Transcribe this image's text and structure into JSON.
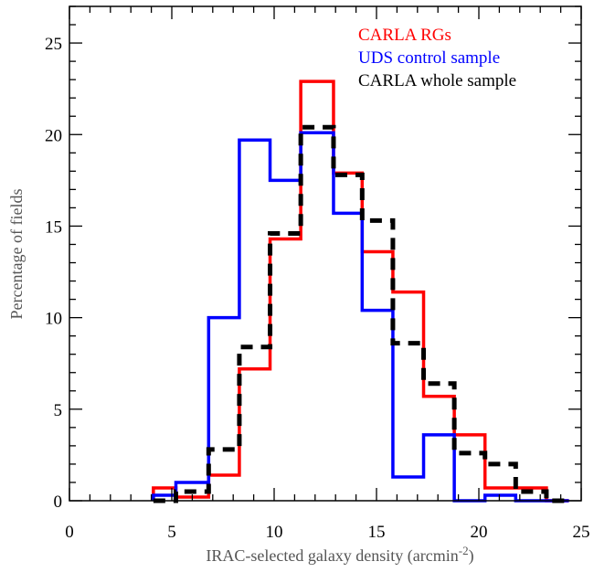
{
  "chart_data": {
    "type": "histogram-step",
    "xlabel": "IRAC-selected galaxy density (arcmin",
    "xlabel_sup": "-2",
    "xlabel_close": ")",
    "ylabel": "Percentage of fields",
    "xlim": [
      0,
      25
    ],
    "ylim": [
      0,
      27
    ],
    "xticks": [
      0,
      5,
      10,
      15,
      20,
      25
    ],
    "yticks": [
      0,
      5,
      10,
      15,
      20,
      25
    ],
    "xtick_labels": [
      "0",
      "5",
      "10",
      "15",
      "20",
      "25"
    ],
    "ytick_labels": [
      "0",
      "5",
      "10",
      "15",
      "20",
      "25"
    ],
    "x_minor_step": 1,
    "y_minor_step": 1,
    "grid": false,
    "legend_position": "top-right",
    "series": [
      {
        "name": "CARLA RGs",
        "color": "#ff0000",
        "style": "solid",
        "edges": [
          4.1,
          5.2,
          6.8,
          8.3,
          9.8,
          11.3,
          12.9,
          14.3,
          15.8,
          17.3,
          18.8,
          20.3,
          21.8,
          23.3,
          24.4
        ],
        "values": [
          0.7,
          0.2,
          1.4,
          7.2,
          14.3,
          22.9,
          17.9,
          13.6,
          11.4,
          5.7,
          3.6,
          0.7,
          0.7,
          0.0
        ]
      },
      {
        "name": "UDS control sample",
        "color": "#0000ff",
        "style": "solid",
        "edges": [
          4.1,
          5.2,
          6.8,
          8.3,
          9.8,
          11.3,
          12.9,
          14.3,
          15.8,
          17.3,
          18.8,
          20.3,
          21.8,
          23.3,
          24.4
        ],
        "values": [
          0.3,
          1.0,
          10.0,
          19.7,
          17.5,
          20.1,
          15.7,
          10.4,
          1.3,
          3.6,
          0.0,
          0.3,
          0.0,
          0.0
        ]
      },
      {
        "name": "CARLA whole sample",
        "color": "#000000",
        "style": "dashed",
        "edges": [
          4.1,
          5.2,
          6.8,
          8.3,
          9.8,
          11.3,
          12.9,
          14.3,
          15.8,
          17.3,
          18.8,
          20.3,
          21.8,
          23.3,
          24.4
        ],
        "values": [
          0.0,
          0.5,
          2.8,
          8.4,
          14.6,
          20.4,
          17.8,
          15.3,
          8.6,
          6.4,
          2.6,
          2.0,
          0.5,
          0.0
        ]
      }
    ]
  }
}
